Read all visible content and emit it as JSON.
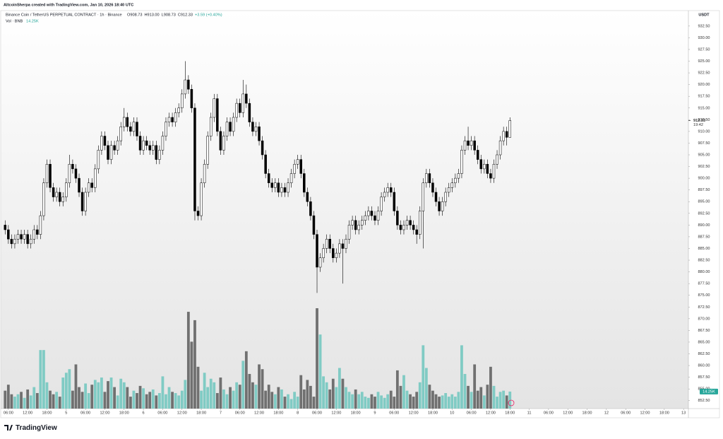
{
  "chart_data": {
    "type": "candlestick",
    "attribution": "AltcoinSherpa created with TradingView.com, Jan 10, 2026 18:40 UTC",
    "symbol": "Binance Coin / TetherUS PERPETUAL CONTRACT · 1h · Binance",
    "ohlc_legend": [
      "O908.73",
      "H913.00",
      "L908.73",
      "C912.33",
      "+3.59 (+0.40%)"
    ],
    "volume_name": "Vol · BNB",
    "volume_value": "14.25K",
    "currency": "USDT",
    "last_price": "912.33",
    "countdown": "19:42",
    "footer": "TradingView",
    "up_color": "#ffffff",
    "down_color": "#000000",
    "candle_border": "#000000",
    "volume_up_color": "#80cbc4",
    "volume_down_color": "#707070",
    "xlim": [
      -0.5,
      212.5
    ],
    "ylim": [
      850.8,
      935.8
    ],
    "xticks": [
      {
        "value": 1,
        "label": "06:00"
      },
      {
        "value": 7,
        "label": "12:00"
      },
      {
        "value": 13,
        "label": "18:00"
      },
      {
        "value": 19,
        "label": "5"
      },
      {
        "value": 25,
        "label": "06:00"
      },
      {
        "value": 31,
        "label": "12:00"
      },
      {
        "value": 37,
        "label": "18:00"
      },
      {
        "value": 43,
        "label": "6"
      },
      {
        "value": 49,
        "label": "06:00"
      },
      {
        "value": 55,
        "label": "12:00"
      },
      {
        "value": 61,
        "label": "18:00"
      },
      {
        "value": 67,
        "label": "7"
      },
      {
        "value": 73,
        "label": "06:00"
      },
      {
        "value": 79,
        "label": "12:00"
      },
      {
        "value": 85,
        "label": "18:00"
      },
      {
        "value": 91,
        "label": "8"
      },
      {
        "value": 97,
        "label": "06:00"
      },
      {
        "value": 103,
        "label": "12:00"
      },
      {
        "value": 109,
        "label": "18:00"
      },
      {
        "value": 115,
        "label": "9"
      },
      {
        "value": 121,
        "label": "06:00"
      },
      {
        "value": 127,
        "label": "12:00"
      },
      {
        "value": 133,
        "label": "18:00"
      },
      {
        "value": 139,
        "label": "10"
      },
      {
        "value": 145,
        "label": "06:00"
      },
      {
        "value": 151,
        "label": "12:00"
      },
      {
        "value": 157,
        "label": "18:00"
      },
      {
        "value": 163,
        "label": "11"
      },
      {
        "value": 169,
        "label": "06:00"
      },
      {
        "value": 175,
        "label": "12:00"
      },
      {
        "value": 181,
        "label": "18:00"
      },
      {
        "value": 187,
        "label": "12"
      },
      {
        "value": 193,
        "label": "06:00"
      },
      {
        "value": 199,
        "label": "12:00"
      },
      {
        "value": 205,
        "label": "18:00"
      },
      {
        "value": 211,
        "label": "13"
      }
    ],
    "yticks": [
      {
        "value": 932.5,
        "label": "932.50"
      },
      {
        "value": 930,
        "label": "930.00"
      },
      {
        "value": 927.5,
        "label": "927.50"
      },
      {
        "value": 925,
        "label": "925.00"
      },
      {
        "value": 922.5,
        "label": "922.50"
      },
      {
        "value": 920,
        "label": "920.00"
      },
      {
        "value": 917.5,
        "label": "917.50"
      },
      {
        "value": 915,
        "label": "915.00"
      },
      {
        "value": 912.5,
        "label": "912.50"
      },
      {
        "value": 910,
        "label": "910.00"
      },
      {
        "value": 907.5,
        "label": "907.50"
      },
      {
        "value": 905,
        "label": "905.00"
      },
      {
        "value": 902.5,
        "label": "902.50"
      },
      {
        "value": 900,
        "label": "900.00"
      },
      {
        "value": 897.5,
        "label": "897.50"
      },
      {
        "value": 895,
        "label": "895.00"
      },
      {
        "value": 892.5,
        "label": "892.50"
      },
      {
        "value": 890,
        "label": "890.00"
      },
      {
        "value": 887.5,
        "label": "887.50"
      },
      {
        "value": 885,
        "label": "885.00"
      },
      {
        "value": 882.5,
        "label": "882.50"
      },
      {
        "value": 880,
        "label": "880.00"
      },
      {
        "value": 877.5,
        "label": "877.50"
      },
      {
        "value": 875,
        "label": "875.00"
      },
      {
        "value": 872.5,
        "label": "872.50"
      },
      {
        "value": 870,
        "label": "870.00"
      },
      {
        "value": 867.5,
        "label": "867.50"
      },
      {
        "value": 865,
        "label": "865.00"
      },
      {
        "value": 862.5,
        "label": "862.50"
      },
      {
        "value": 860,
        "label": "860.00"
      },
      {
        "value": 857.5,
        "label": "857.50"
      },
      {
        "value": 855,
        "label": "855.00"
      },
      {
        "value": 852.5,
        "label": "852.50"
      }
    ],
    "ohlc": [
      [
        890,
        891,
        888,
        889
      ],
      [
        889,
        890,
        886,
        887
      ],
      [
        887,
        888,
        885,
        886
      ],
      [
        886,
        888,
        885,
        887
      ],
      [
        887,
        889,
        886,
        888
      ],
      [
        888,
        889,
        886,
        887
      ],
      [
        887,
        889,
        886,
        888
      ],
      [
        888,
        889,
        885,
        886
      ],
      [
        886,
        888,
        885,
        887
      ],
      [
        887,
        890,
        886,
        889
      ],
      [
        889,
        890,
        887,
        888
      ],
      [
        888,
        893,
        887,
        892
      ],
      [
        892,
        900,
        891,
        899
      ],
      [
        899,
        904,
        898,
        903
      ],
      [
        903,
        904,
        897,
        898
      ],
      [
        898,
        899,
        895,
        896
      ],
      [
        896,
        898,
        895,
        897
      ],
      [
        897,
        898,
        894,
        895
      ],
      [
        895,
        897,
        894,
        896
      ],
      [
        896,
        900,
        895,
        899
      ],
      [
        899,
        905,
        898,
        903
      ],
      [
        903,
        904,
        901,
        902
      ],
      [
        902,
        903,
        899,
        900
      ],
      [
        900,
        901,
        896,
        897
      ],
      [
        897,
        898,
        892,
        893
      ],
      [
        893,
        898,
        892,
        897
      ],
      [
        897,
        900,
        896,
        899
      ],
      [
        899,
        900,
        897,
        898
      ],
      [
        898,
        903,
        897,
        902
      ],
      [
        902,
        907,
        901,
        906
      ],
      [
        906,
        910,
        905,
        909
      ],
      [
        909,
        910,
        906,
        907
      ],
      [
        907,
        908,
        903,
        904
      ],
      [
        904,
        908,
        903,
        907
      ],
      [
        907,
        908,
        905,
        906
      ],
      [
        906,
        909,
        905,
        908
      ],
      [
        908,
        912,
        907,
        911
      ],
      [
        911,
        915,
        910,
        913
      ],
      [
        913,
        914,
        910,
        911
      ],
      [
        911,
        912,
        909,
        910
      ],
      [
        910,
        913,
        909,
        912
      ],
      [
        912,
        913,
        908,
        909
      ],
      [
        909,
        910,
        905,
        906
      ],
      [
        906,
        909,
        905,
        908
      ],
      [
        908,
        909,
        906,
        907
      ],
      [
        907,
        908,
        905,
        906
      ],
      [
        906,
        908,
        905,
        907
      ],
      [
        907,
        908,
        903,
        904
      ],
      [
        904,
        907,
        903,
        906
      ],
      [
        906,
        910,
        905,
        909
      ],
      [
        909,
        913,
        908,
        912
      ],
      [
        912,
        914,
        911,
        913
      ],
      [
        913,
        914,
        911,
        912
      ],
      [
        912,
        915,
        911,
        914
      ],
      [
        914,
        916,
        913,
        915
      ],
      [
        915,
        919,
        914,
        918
      ],
      [
        918,
        925,
        917,
        921
      ],
      [
        921,
        922,
        918,
        919
      ],
      [
        919,
        920,
        914,
        915
      ],
      [
        915,
        916,
        891,
        893
      ],
      [
        893,
        894,
        891,
        892
      ],
      [
        892,
        900,
        891,
        899
      ],
      [
        899,
        904,
        898,
        903
      ],
      [
        903,
        910,
        902,
        909
      ],
      [
        909,
        914,
        908,
        913
      ],
      [
        913,
        918,
        912,
        917
      ],
      [
        917,
        918,
        909,
        910
      ],
      [
        910,
        911,
        905,
        906
      ],
      [
        906,
        910,
        905,
        909
      ],
      [
        909,
        913,
        908,
        912
      ],
      [
        912,
        913,
        909,
        910
      ],
      [
        910,
        914,
        909,
        913
      ],
      [
        913,
        917,
        912,
        916
      ],
      [
        916,
        917,
        913,
        914
      ],
      [
        914,
        921,
        913,
        918
      ],
      [
        918,
        920,
        915,
        916
      ],
      [
        916,
        917,
        911,
        912
      ],
      [
        912,
        913,
        909,
        910
      ],
      [
        910,
        912,
        909,
        911
      ],
      [
        911,
        912,
        907,
        908
      ],
      [
        908,
        909,
        904,
        905
      ],
      [
        905,
        906,
        900,
        901
      ],
      [
        901,
        902,
        898,
        899
      ],
      [
        899,
        900,
        897,
        898
      ],
      [
        898,
        900,
        897,
        899
      ],
      [
        899,
        900,
        896,
        897
      ],
      [
        897,
        899,
        896,
        898
      ],
      [
        898,
        899,
        896,
        897
      ],
      [
        897,
        900,
        896,
        899
      ],
      [
        899,
        902,
        898,
        901
      ],
      [
        901,
        904,
        900,
        903
      ],
      [
        903,
        905,
        902,
        904
      ],
      [
        904,
        905,
        900,
        901
      ],
      [
        901,
        902,
        896,
        897
      ],
      [
        897,
        898,
        894,
        895
      ],
      [
        895,
        896,
        891,
        892
      ],
      [
        892,
        893,
        887,
        888
      ],
      [
        888,
        889,
        875.5,
        881
      ],
      [
        881,
        884,
        880,
        883
      ],
      [
        883,
        886,
        882,
        885
      ],
      [
        885,
        888,
        884,
        887
      ],
      [
        887,
        888,
        884,
        885
      ],
      [
        885,
        886,
        882,
        883
      ],
      [
        883,
        885,
        882,
        884
      ],
      [
        884,
        887,
        883,
        886
      ],
      [
        886,
        887,
        877.5,
        885
      ],
      [
        885,
        888,
        884,
        887
      ],
      [
        887,
        891,
        886,
        890
      ],
      [
        890,
        892,
        889,
        891
      ],
      [
        891,
        892,
        888,
        889
      ],
      [
        889,
        891,
        888,
        890
      ],
      [
        890,
        892,
        889,
        891
      ],
      [
        891,
        893,
        890,
        892
      ],
      [
        892,
        894,
        891,
        893
      ],
      [
        893,
        894,
        891,
        892
      ],
      [
        892,
        893,
        890,
        891
      ],
      [
        891,
        894,
        890,
        893
      ],
      [
        893,
        897,
        892,
        896
      ],
      [
        896,
        898,
        895,
        897
      ],
      [
        897,
        899,
        896,
        898
      ],
      [
        898,
        899,
        896,
        897
      ],
      [
        897,
        898,
        892,
        893
      ],
      [
        893,
        894,
        889,
        890
      ],
      [
        890,
        891,
        888,
        889
      ],
      [
        889,
        891,
        888,
        890
      ],
      [
        890,
        892,
        889,
        891
      ],
      [
        891,
        892,
        889,
        890
      ],
      [
        890,
        891,
        888,
        889
      ],
      [
        889,
        890,
        886,
        888
      ],
      [
        888,
        894,
        887,
        893
      ],
      [
        893,
        900,
        885,
        899
      ],
      [
        899,
        902,
        898,
        901
      ],
      [
        901,
        902,
        898,
        899
      ],
      [
        899,
        900,
        896,
        897
      ],
      [
        897,
        898,
        894,
        895
      ],
      [
        895,
        896,
        892,
        893
      ],
      [
        893,
        896,
        892,
        895
      ],
      [
        895,
        898,
        894,
        897
      ],
      [
        897,
        899,
        896,
        898
      ],
      [
        898,
        900,
        897,
        899
      ],
      [
        899,
        901,
        898,
        900
      ],
      [
        900,
        902,
        899,
        901
      ],
      [
        901,
        907,
        900,
        906
      ],
      [
        906,
        909,
        905,
        908
      ],
      [
        908,
        911,
        906,
        907
      ],
      [
        907,
        909,
        906,
        908
      ],
      [
        908,
        909,
        905,
        906
      ],
      [
        906,
        907,
        903,
        904
      ],
      [
        904,
        905,
        901,
        902
      ],
      [
        902,
        904,
        901,
        903
      ],
      [
        903,
        904,
        900,
        901
      ],
      [
        901,
        902,
        899,
        900
      ],
      [
        900,
        904,
        899,
        903
      ],
      [
        903,
        906,
        902,
        905
      ],
      [
        905,
        909,
        904,
        908
      ],
      [
        908,
        911,
        907,
        910
      ],
      [
        910,
        911,
        907,
        908.73
      ],
      [
        908.73,
        913,
        908.73,
        912.33
      ]
    ],
    "volume": [
      15000,
      20000,
      12000,
      10000,
      12000,
      14000,
      9000,
      16000,
      11000,
      18000,
      13000,
      49000,
      49000,
      22000,
      15000,
      12000,
      14000,
      10000,
      26000,
      30000,
      33000,
      15000,
      37000,
      18000,
      14000,
      21000,
      13000,
      20000,
      24000,
      22000,
      26000,
      14000,
      23000,
      26000,
      18000,
      11000,
      25000,
      22000,
      18000,
      10000,
      15000,
      13000,
      19000,
      17000,
      12000,
      14000,
      16000,
      11000,
      13000,
      27000,
      12000,
      18000,
      14000,
      13000,
      11000,
      15000,
      24000,
      81000,
      56000,
      74000,
      35000,
      15000,
      30000,
      18000,
      25000,
      22000,
      13000,
      26000,
      16000,
      12000,
      18000,
      15000,
      22000,
      20000,
      40000,
      48000,
      29000,
      22000,
      20000,
      37000,
      33000,
      15000,
      20000,
      14000,
      12000,
      18000,
      16000,
      10000,
      12000,
      8000,
      14000,
      10000,
      28000,
      16000,
      24000,
      19000,
      10000,
      84000,
      62000,
      27000,
      22000,
      16000,
      25000,
      18000,
      34000,
      25000,
      18000,
      14000,
      12000,
      16000,
      12000,
      14000,
      10000,
      9000,
      12000,
      10000,
      14000,
      11000,
      9000,
      12000,
      15000,
      10000,
      32000,
      19000,
      28000,
      15000,
      12000,
      10000,
      14000,
      22000,
      53000,
      34000,
      20000,
      15000,
      12000,
      10000,
      11000,
      13000,
      10000,
      12000,
      10000,
      14000,
      53000,
      29000,
      19000,
      14000,
      37000,
      15000,
      18000,
      11000,
      20000,
      35000,
      19000,
      10000,
      14000,
      15000,
      11000,
      14250
    ]
  }
}
